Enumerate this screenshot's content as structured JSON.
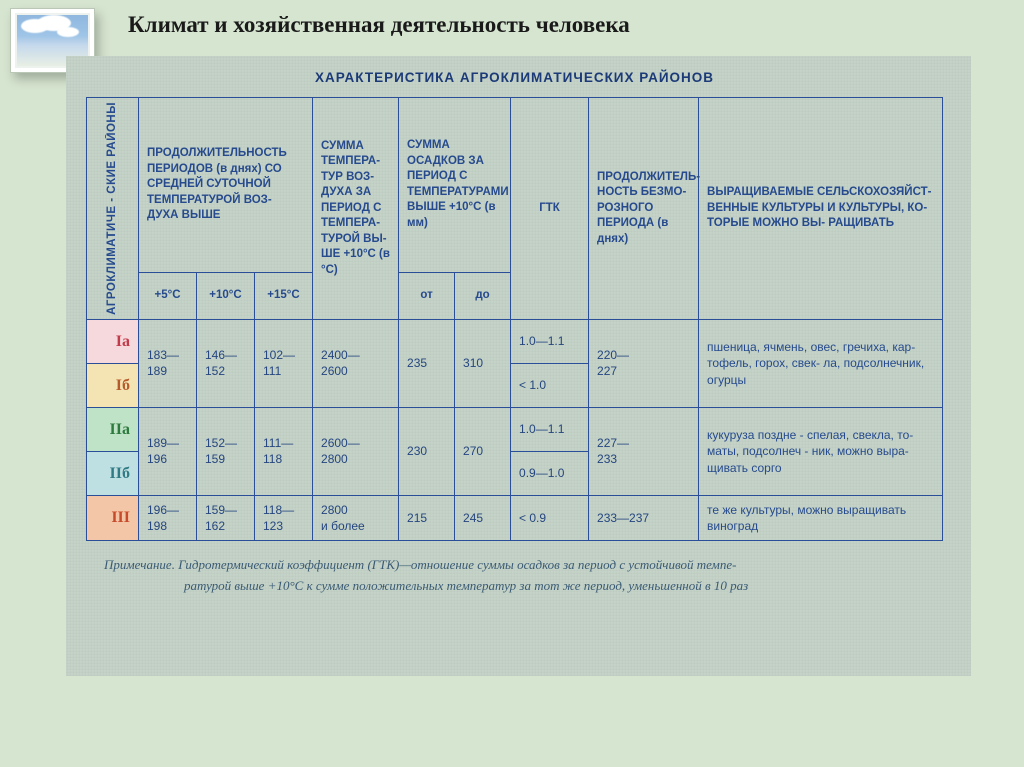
{
  "page": {
    "title": "Климат и хозяйственная деятельность человека"
  },
  "table": {
    "title": "ХАРАКТЕРИСТИКА АГРОКЛИМАТИЧЕСКИХ РАЙОНОВ",
    "border_color": "#2a4e97",
    "text_color": "#264a8d",
    "background": "#c3d2c6",
    "headers": {
      "zones_vert": "АГРОКЛИМАТИЧЕ - СКИЕ РАЙОНЫ",
      "duration": "ПРОДОЛЖИТЕЛЬНОСТЬ ПЕРИОДОВ (в днях) СО СРЕДНЕЙ СУТОЧНОЙ ТЕМПЕРАТУРОЙ ВОЗ- ДУХА ВЫШЕ",
      "duration_sub": {
        "c5": "+5°C",
        "c10": "+10°C",
        "c15": "+15°C"
      },
      "temp_sum": "СУММА ТЕМПЕРА- ТУР ВОЗ- ДУХА ЗА ПЕРИОД С ТЕМПЕРА- ТУРОЙ ВЫ- ШЕ +10°C (в °C)",
      "precip": "СУММА ОСАДКОВ ЗА ПЕРИОД С ТЕМПЕРАТУРАМИ ВЫШЕ +10°C (в мм)",
      "precip_sub": {
        "from": "от",
        "to": "до"
      },
      "gtk": "ГТК",
      "frostfree": "ПРОДОЛЖИТЕЛЬ- НОСТЬ БЕЗМО- РОЗНОГО ПЕРИОДА (в днях)",
      "crops": "ВЫРАЩИВАЕМЫЕ СЕЛЬСКОХОЗЯЙСТ- ВЕННЫЕ КУЛЬТУРЫ И КУЛЬТУРЫ, КО- ТОРЫЕ МОЖНО ВЫ- РАЩИВАТЬ"
    },
    "zones": [
      {
        "id": "Ia",
        "label": "Iа",
        "swatch": "#f6d9dd",
        "label_color": "#c23b4a"
      },
      {
        "id": "Ib",
        "label": "Iб",
        "swatch": "#f4e4b3",
        "label_color": "#b55a2a"
      },
      {
        "id": "IIa",
        "label": "IIа",
        "swatch": "#bfe3c6",
        "label_color": "#2c7a3e"
      },
      {
        "id": "IIb",
        "label": "IIб",
        "swatch": "#bfe0e2",
        "label_color": "#2f7a84"
      },
      {
        "id": "III",
        "label": "III",
        "swatch": "#f3c6a7",
        "label_color": "#c74a2b"
      }
    ],
    "groups": [
      {
        "zone_ids": [
          "Ia",
          "Ib"
        ],
        "duration": {
          "c5": "183— 189",
          "c10": "146— 152",
          "c15": "102— 111"
        },
        "temp_sum": "2400— 2600",
        "precip": {
          "from": "235",
          "to": "310"
        },
        "gtk_rows": [
          "1.0—1.1",
          "< 1.0"
        ],
        "frostfree": "220— 227",
        "crops": "пшеница, ячмень, овес, гречиха, кар- тофель, горох, свек- ла, подсолнечник, огурцы"
      },
      {
        "zone_ids": [
          "IIa",
          "IIb"
        ],
        "duration": {
          "c5": "189— 196",
          "c10": "152— 159",
          "c15": "111— 118"
        },
        "temp_sum": "2600— 2800",
        "precip": {
          "from": "230",
          "to": "270"
        },
        "gtk_rows": [
          "1.0—1.1",
          "0.9—1.0"
        ],
        "frostfree": "227— 233",
        "crops": "кукуруза поздне - спелая, свекла, то- маты, подсолнеч - ник, можно выра- щивать сорго"
      },
      {
        "zone_ids": [
          "III"
        ],
        "duration": {
          "c5": "196— 198",
          "c10": "159— 162",
          "c15": "118— 123"
        },
        "temp_sum": "2800 и более",
        "precip": {
          "from": "215",
          "to": "245"
        },
        "gtk_rows": [
          "< 0.9"
        ],
        "frostfree": "233—237",
        "crops": "те же культуры, можно выращивать виноград"
      }
    ]
  },
  "footnote": {
    "lead": "Примечание.",
    "line1": "Гидротермический коэффициент (ГТК)—отношение суммы осадков за период с устойчивой темпе-",
    "line2": "ратурой выше +10°C к сумме положительных температур за тот же период, уменьшенной в 10 раз"
  }
}
